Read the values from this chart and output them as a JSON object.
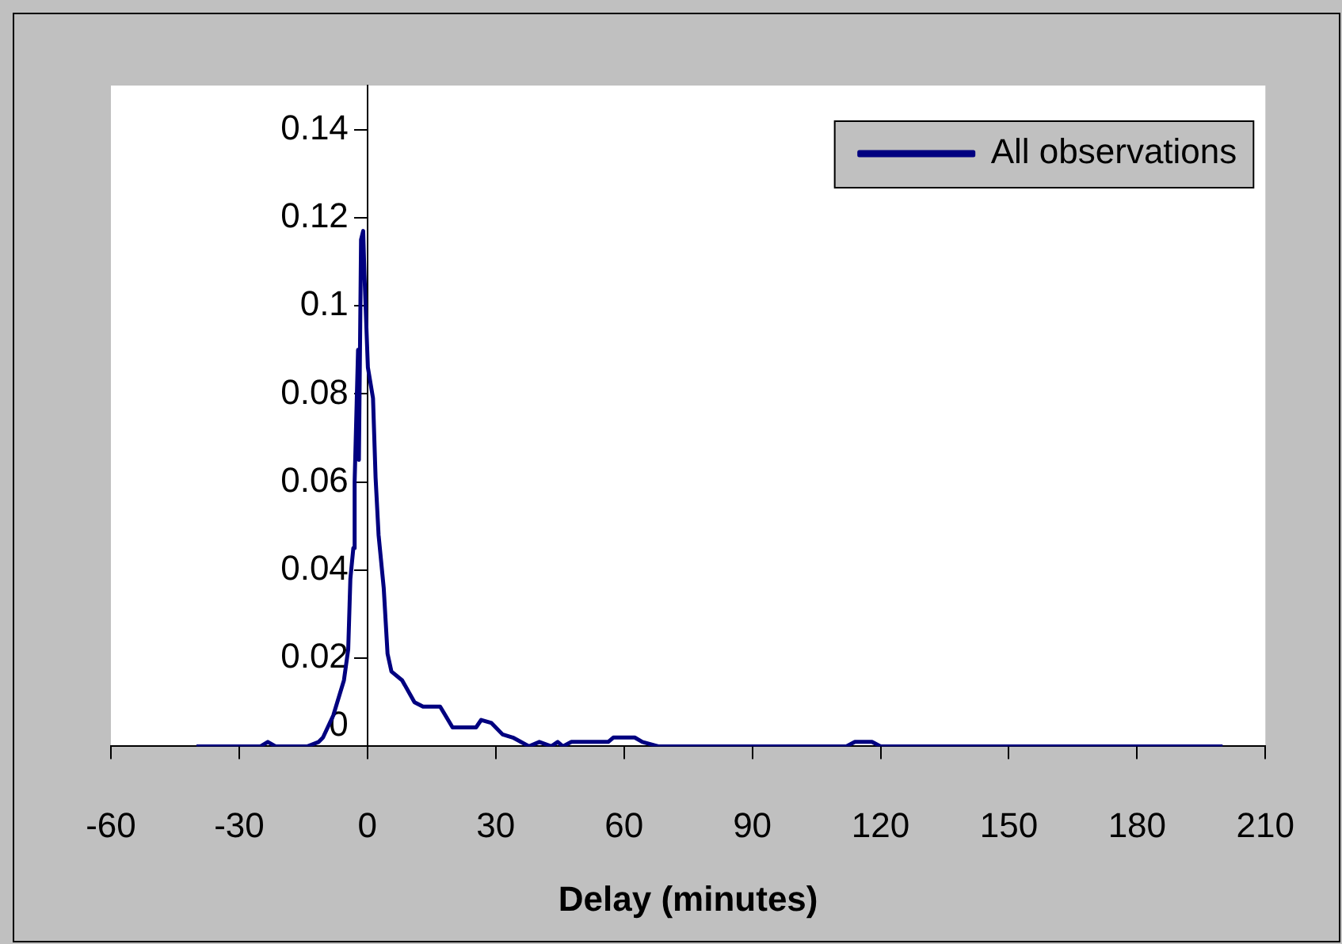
{
  "chart_data": {
    "type": "line",
    "xlabel": "Delay (minutes)",
    "xlim": [
      -60,
      210
    ],
    "xticks": [
      -60,
      -30,
      0,
      30,
      60,
      90,
      120,
      150,
      180,
      210
    ],
    "ylim": [
      0,
      0.15
    ],
    "yticks": [
      0,
      0.02,
      0.04,
      0.06,
      0.08,
      0.1,
      0.12,
      0.14
    ],
    "grid": false,
    "legend": "top right",
    "marker": "none",
    "line_style": "solid",
    "series": [
      {
        "name": "All observations",
        "color": "#000080",
        "x": [
          -40,
          -25,
          -23.3,
          -21.5,
          -14,
          -11.4,
          -10.4,
          -8,
          -5.5,
          -4.5,
          -4,
          -3.3,
          -3,
          -2.2,
          -2,
          -1.5,
          -1,
          -0.7,
          0.1,
          1.3,
          1.9,
          2.6,
          3.8,
          4.7,
          5.6,
          8.1,
          11,
          13,
          17,
          19.9,
          25.4,
          26.6,
          29,
          31.6,
          34,
          37.8,
          40.2,
          43,
          44.5,
          45.7,
          47.7,
          56.3,
          57.5,
          62.5,
          64.3,
          68,
          112,
          114,
          118,
          120,
          200
        ],
        "values": [
          0,
          0,
          0.001,
          0,
          0,
          0.001,
          0.002,
          0.007,
          0.015,
          0.022,
          0.038,
          0.045,
          0.06,
          0.09,
          0.065,
          0.115,
          0.117,
          0.107,
          0.086,
          0.079,
          0.061,
          0.048,
          0.036,
          0.021,
          0.017,
          0.015,
          0.01,
          0.009,
          0.009,
          0.0043,
          0.0043,
          0.006,
          0.0053,
          0.0027,
          0.002,
          0,
          0.001,
          0,
          0.001,
          0,
          0.001,
          0.001,
          0.002,
          0.002,
          0.001,
          0,
          0,
          0.001,
          0.001,
          0,
          0
        ]
      }
    ]
  }
}
